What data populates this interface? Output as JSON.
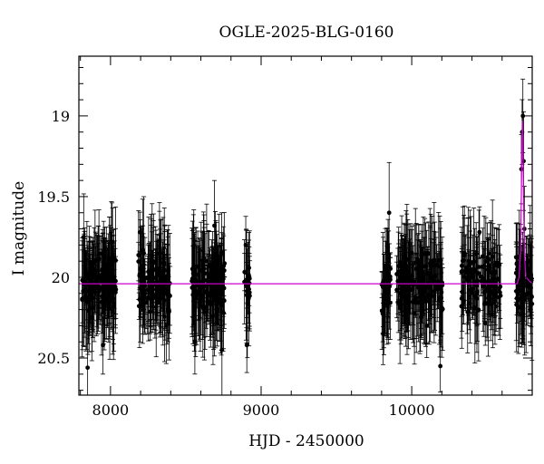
{
  "chart_data": {
    "type": "scatter",
    "title": "OGLE-2025-BLG-0160",
    "xlabel": "HJD - 2450000",
    "ylabel": "I magnitude",
    "xlim": [
      7790,
      10800
    ],
    "ylim": [
      20.73,
      18.63
    ],
    "y_inverted": true,
    "x_ticks": [
      8000,
      9000,
      10000
    ],
    "y_ticks": [
      19,
      19.5,
      20,
      20.5
    ],
    "x_tick_labels": [
      "8000",
      "9000",
      "10000"
    ],
    "y_tick_labels": [
      "19",
      "19.5",
      "20",
      "20.5"
    ],
    "baseline_mag": 20.04,
    "colors": {
      "points": "#000000",
      "model": "#cc00cc"
    },
    "seasons": [
      {
        "x_start": 7810,
        "x_end": 8040,
        "n": 150
      },
      {
        "x_start": 8185,
        "x_end": 8395,
        "n": 130
      },
      {
        "x_start": 8540,
        "x_end": 8760,
        "n": 140
      },
      {
        "x_start": 8885,
        "x_end": 8925,
        "n": 18
      },
      {
        "x_start": 9800,
        "x_end": 9860,
        "n": 35
      },
      {
        "x_start": 9900,
        "x_end": 10210,
        "n": 150
      },
      {
        "x_start": 10330,
        "x_end": 10590,
        "n": 120
      },
      {
        "x_start": 10690,
        "x_end": 10800,
        "n": 60
      }
    ],
    "series": [
      {
        "points": [
          {
            "x": 7822,
            "y": 19.75
          },
          {
            "x": 7830,
            "y": 19.9
          },
          {
            "x": 7848,
            "y": 20.56
          },
          {
            "x": 7900,
            "y": 19.97
          },
          {
            "x": 7950,
            "y": 20.42
          },
          {
            "x": 8010,
            "y": 19.78
          },
          {
            "x": 8195,
            "y": 19.72
          },
          {
            "x": 8230,
            "y": 20.1
          },
          {
            "x": 8300,
            "y": 19.95
          },
          {
            "x": 8370,
            "y": 20.3
          },
          {
            "x": 8560,
            "y": 20.4
          },
          {
            "x": 8620,
            "y": 19.9
          },
          {
            "x": 8690,
            "y": 19.68
          },
          {
            "x": 8740,
            "y": 20.45
          },
          {
            "x": 8898,
            "y": 19.8
          },
          {
            "x": 8905,
            "y": 20.42
          },
          {
            "x": 9810,
            "y": 20.35
          },
          {
            "x": 9850,
            "y": 19.6
          },
          {
            "x": 9920,
            "y": 20.1
          },
          {
            "x": 10000,
            "y": 19.85
          },
          {
            "x": 10100,
            "y": 20.3
          },
          {
            "x": 10190,
            "y": 20.55
          },
          {
            "x": 10350,
            "y": 19.85
          },
          {
            "x": 10450,
            "y": 19.72
          },
          {
            "x": 10560,
            "y": 20.18
          },
          {
            "x": 10700,
            "y": 19.95
          },
          {
            "x": 10728,
            "y": 19.33
          },
          {
            "x": 10733,
            "y": 19.1
          },
          {
            "x": 10738,
            "y": 19.0
          },
          {
            "x": 10743,
            "y": 19.28
          },
          {
            "x": 10748,
            "y": 19.7
          },
          {
            "x": 10770,
            "y": 20.0
          },
          {
            "x": 10790,
            "y": 20.2
          }
        ]
      }
    ],
    "model": {
      "name": "",
      "points": [
        {
          "x": 7790,
          "y": 20.04
        },
        {
          "x": 10700,
          "y": 20.04
        },
        {
          "x": 10712,
          "y": 20.0
        },
        {
          "x": 10722,
          "y": 19.85
        },
        {
          "x": 10728,
          "y": 19.5
        },
        {
          "x": 10732,
          "y": 19.15
        },
        {
          "x": 10735,
          "y": 19.03
        },
        {
          "x": 10738,
          "y": 19.15
        },
        {
          "x": 10742,
          "y": 19.5
        },
        {
          "x": 10748,
          "y": 19.85
        },
        {
          "x": 10758,
          "y": 20.0
        },
        {
          "x": 10800,
          "y": 20.04
        }
      ]
    }
  }
}
